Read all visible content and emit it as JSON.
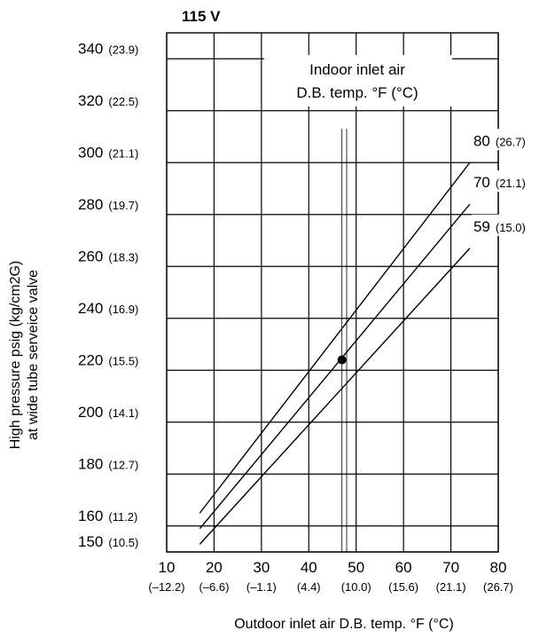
{
  "chart_data": {
    "type": "line",
    "title": "115 V",
    "xlabel": "Outdoor inlet air D.B. temp. °F (°C)",
    "ylabel_line1": "High pressure psig (kg/cm2G)",
    "ylabel_line2": "at wide tube serveice valve",
    "xlim": [
      10,
      80
    ],
    "ylim": [
      150,
      350
    ],
    "x_ticks": [
      {
        "value": 10,
        "f": "10",
        "c": "(–12.2)"
      },
      {
        "value": 20,
        "f": "20",
        "c": "(–6.6)"
      },
      {
        "value": 30,
        "f": "30",
        "c": "(–1.1)"
      },
      {
        "value": 40,
        "f": "40",
        "c": "(4.4)"
      },
      {
        "value": 50,
        "f": "50",
        "c": "(10.0)"
      },
      {
        "value": 60,
        "f": "60",
        "c": "(15.6)"
      },
      {
        "value": 70,
        "f": "70",
        "c": "(21.1)"
      },
      {
        "value": 80,
        "f": "80",
        "c": "(26.7)"
      }
    ],
    "y_ticks": [
      {
        "value": 150,
        "psig": "150",
        "kg": "(10.5)"
      },
      {
        "value": 160,
        "psig": "160",
        "kg": "(11.2)"
      },
      {
        "value": 180,
        "psig": "180",
        "kg": "(12.7)"
      },
      {
        "value": 200,
        "psig": "200",
        "kg": "(14.1)"
      },
      {
        "value": 220,
        "psig": "220",
        "kg": "(15.5)"
      },
      {
        "value": 240,
        "psig": "240",
        "kg": "(16.9)"
      },
      {
        "value": 260,
        "psig": "260",
        "kg": "(18.3)"
      },
      {
        "value": 280,
        "psig": "280",
        "kg": "(19.7)"
      },
      {
        "value": 300,
        "psig": "300",
        "kg": "(21.1)"
      },
      {
        "value": 320,
        "psig": "320",
        "kg": "(22.5)"
      },
      {
        "value": 340,
        "psig": "340",
        "kg": "(23.9)"
      }
    ],
    "legend_title_line1": "Indoor inlet air",
    "legend_title_line2": "D.B. temp. °F (°C)",
    "series": [
      {
        "name": "80",
        "name_c": "(26.7)",
        "x": [
          17,
          74
        ],
        "y": [
          165,
          300
        ]
      },
      {
        "name": "70",
        "name_c": "(21.1)",
        "x": [
          17,
          74
        ],
        "y": [
          159,
          284
        ]
      },
      {
        "name": "59",
        "name_c": "(15.0)",
        "x": [
          17,
          74
        ],
        "y": [
          153,
          267
        ]
      }
    ],
    "reference_x": [
      47,
      48
    ],
    "marker": {
      "x": 47,
      "y": 224
    }
  }
}
